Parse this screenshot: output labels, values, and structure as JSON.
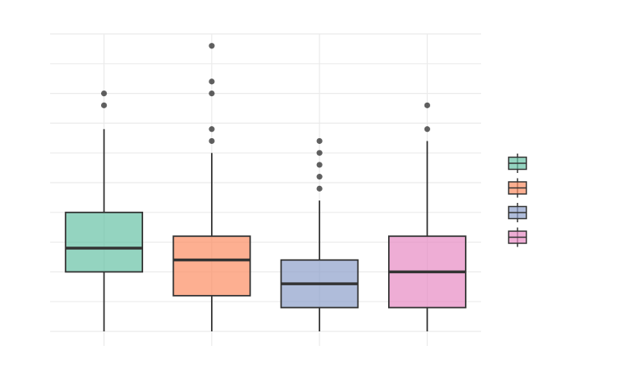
{
  "chart_data": {
    "type": "box",
    "title": "",
    "xlabel": "",
    "ylabel": "",
    "categories": [
      "",
      "",
      "",
      ""
    ],
    "ylim": [
      0,
      25
    ],
    "grid": true,
    "legend": {
      "placement": "right",
      "entries": [
        "",
        "",
        "",
        ""
      ]
    },
    "series": [
      {
        "q1": 5,
        "median": 7,
        "q3": 10,
        "whisker_low": 0,
        "whisker_high": 17,
        "outliers": [
          19,
          20
        ],
        "color": "#66c2a5"
      },
      {
        "q1": 3,
        "median": 6,
        "q3": 8,
        "whisker_low": 0,
        "whisker_high": 15,
        "outliers": [
          16,
          17,
          20,
          21,
          24
        ],
        "color": "#fc8d62"
      },
      {
        "q1": 2,
        "median": 4,
        "q3": 6,
        "whisker_low": 0,
        "whisker_high": 11,
        "outliers": [
          12,
          13,
          14,
          15,
          16
        ],
        "color": "#8da0cb"
      },
      {
        "q1": 2,
        "median": 5,
        "q3": 8,
        "whisker_low": 0,
        "whisker_high": 16,
        "outliers": [
          17,
          19
        ],
        "color": "#e78ac3"
      }
    ]
  }
}
